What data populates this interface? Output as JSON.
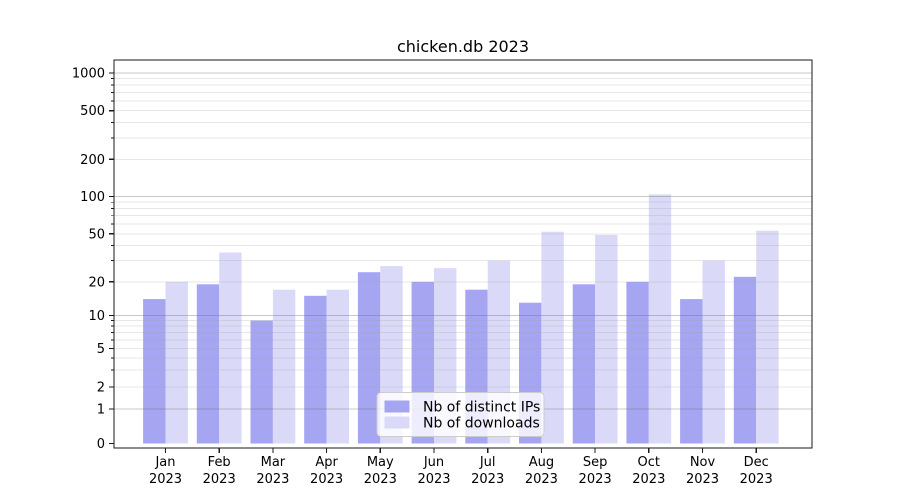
{
  "title": "chicken.db 2023",
  "legend": {
    "items": [
      {
        "label": "Nb of distinct IPs",
        "color": "#a5a5f2"
      },
      {
        "label": "Nb of downloads",
        "color": "#dadaf8"
      }
    ]
  },
  "colors": {
    "distinct_ips": "#a5a5f2",
    "downloads": "#dadaf8",
    "spine": "#1a1a1a",
    "grid_major": "rgba(110,110,110,0.38)",
    "grid_minor": "rgba(160,160,160,0.25)"
  },
  "chart_data": {
    "type": "bar",
    "title": "chicken.db 2023",
    "categories": [
      "Jan",
      "Feb",
      "Mar",
      "Apr",
      "May",
      "Jun",
      "Jul",
      "Aug",
      "Sep",
      "Oct",
      "Nov",
      "Dec"
    ],
    "category_year": "2023",
    "series": [
      {
        "name": "Nb of distinct IPs",
        "color": "#a5a5f2",
        "values": [
          14,
          19,
          9,
          15,
          24,
          20,
          17,
          13,
          19,
          20,
          14,
          22
        ]
      },
      {
        "name": "Nb of downloads",
        "color": "#dadaf8",
        "values": [
          20,
          35,
          17,
          17,
          27,
          26,
          30,
          52,
          49,
          104,
          30,
          53
        ]
      }
    ],
    "y_scale": "symlog",
    "y_ticks": [
      0,
      1,
      2,
      5,
      10,
      20,
      50,
      100,
      200,
      500,
      1000
    ],
    "y_minor_ticks": [
      3,
      4,
      6,
      7,
      8,
      9,
      30,
      40,
      60,
      70,
      80,
      90,
      300,
      400,
      600,
      700,
      800,
      900
    ],
    "ylim": [
      0,
      1270
    ],
    "grid": "on",
    "legend_position": "lower center",
    "xlabel": "",
    "ylabel": ""
  }
}
